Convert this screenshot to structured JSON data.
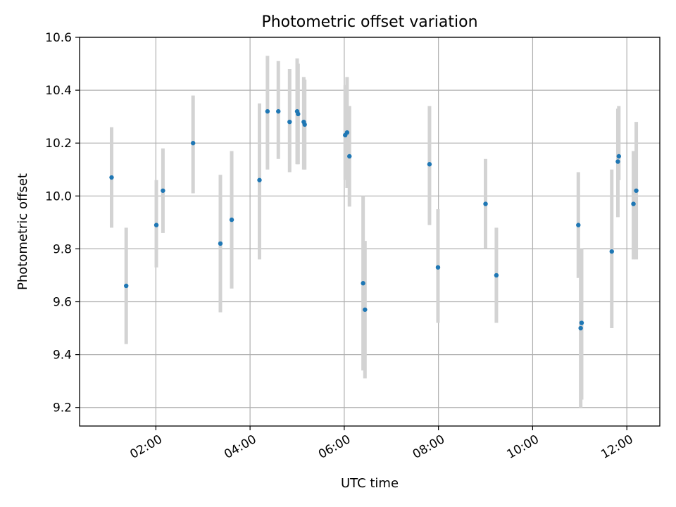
{
  "chart_data": {
    "type": "scatter",
    "title": "Photometric offset variation",
    "xlabel": "UTC time",
    "ylabel": "Photometric offset",
    "x_unit": "hours UTC",
    "xlim": [
      0.38,
      12.7
    ],
    "ylim": [
      9.13,
      10.6
    ],
    "grid": true,
    "x_ticks": [
      {
        "value": 2,
        "label": "02:00"
      },
      {
        "value": 4,
        "label": "04:00"
      },
      {
        "value": 6,
        "label": "06:00"
      },
      {
        "value": 8,
        "label": "08:00"
      },
      {
        "value": 10,
        "label": "10:00"
      },
      {
        "value": 12,
        "label": "12:00"
      }
    ],
    "y_ticks": [
      {
        "value": 9.2,
        "label": "9.2"
      },
      {
        "value": 9.4,
        "label": "9.4"
      },
      {
        "value": 9.6,
        "label": "9.6"
      },
      {
        "value": 9.8,
        "label": "9.8"
      },
      {
        "value": 10.0,
        "label": "10.0"
      },
      {
        "value": 10.2,
        "label": "10.2"
      },
      {
        "value": 10.4,
        "label": "10.4"
      },
      {
        "value": 10.6,
        "label": "10.6"
      }
    ],
    "colors": {
      "point": "#1f77b4",
      "errorbar": "#d3d3d3"
    },
    "points": [
      {
        "x": 1.06,
        "y": 10.07,
        "lo": 9.88,
        "hi": 10.26
      },
      {
        "x": 1.37,
        "y": 9.66,
        "lo": 9.44,
        "hi": 9.88
      },
      {
        "x": 2.01,
        "y": 9.89,
        "lo": 9.73,
        "hi": 10.06
      },
      {
        "x": 2.15,
        "y": 10.02,
        "lo": 9.86,
        "hi": 10.18
      },
      {
        "x": 2.79,
        "y": 10.2,
        "lo": 10.01,
        "hi": 10.38
      },
      {
        "x": 3.37,
        "y": 9.82,
        "lo": 9.56,
        "hi": 10.08
      },
      {
        "x": 3.61,
        "y": 9.91,
        "lo": 9.65,
        "hi": 10.17
      },
      {
        "x": 4.2,
        "y": 10.06,
        "lo": 9.76,
        "hi": 10.35
      },
      {
        "x": 4.37,
        "y": 10.32,
        "lo": 10.1,
        "hi": 10.53
      },
      {
        "x": 4.6,
        "y": 10.32,
        "lo": 10.14,
        "hi": 10.51
      },
      {
        "x": 4.84,
        "y": 10.28,
        "lo": 10.09,
        "hi": 10.48
      },
      {
        "x": 5.0,
        "y": 10.32,
        "lo": 10.12,
        "hi": 10.52
      },
      {
        "x": 5.02,
        "y": 10.31,
        "lo": 10.12,
        "hi": 10.5
      },
      {
        "x": 5.14,
        "y": 10.28,
        "lo": 10.1,
        "hi": 10.45
      },
      {
        "x": 5.16,
        "y": 10.27,
        "lo": 10.1,
        "hi": 10.44
      },
      {
        "x": 6.02,
        "y": 10.23,
        "lo": 10.06,
        "hi": 10.42
      },
      {
        "x": 6.06,
        "y": 10.24,
        "lo": 10.03,
        "hi": 10.45
      },
      {
        "x": 6.11,
        "y": 10.15,
        "lo": 9.96,
        "hi": 10.34
      },
      {
        "x": 6.4,
        "y": 9.67,
        "lo": 9.34,
        "hi": 10.0
      },
      {
        "x": 6.44,
        "y": 9.57,
        "lo": 9.31,
        "hi": 9.83
      },
      {
        "x": 7.81,
        "y": 10.12,
        "lo": 9.89,
        "hi": 10.34
      },
      {
        "x": 7.99,
        "y": 9.73,
        "lo": 9.52,
        "hi": 9.95
      },
      {
        "x": 9.0,
        "y": 9.97,
        "lo": 9.8,
        "hi": 10.14
      },
      {
        "x": 9.23,
        "y": 9.7,
        "lo": 9.52,
        "hi": 9.88
      },
      {
        "x": 10.97,
        "y": 9.89,
        "lo": 9.69,
        "hi": 10.09
      },
      {
        "x": 11.02,
        "y": 9.5,
        "lo": 9.2,
        "hi": 9.8
      },
      {
        "x": 11.04,
        "y": 9.52,
        "lo": 9.23,
        "hi": 9.8
      },
      {
        "x": 11.68,
        "y": 9.79,
        "lo": 9.5,
        "hi": 10.1
      },
      {
        "x": 11.81,
        "y": 10.13,
        "lo": 9.92,
        "hi": 10.33
      },
      {
        "x": 11.83,
        "y": 10.15,
        "lo": 10.06,
        "hi": 10.34
      },
      {
        "x": 12.14,
        "y": 9.97,
        "lo": 9.76,
        "hi": 10.17
      },
      {
        "x": 12.2,
        "y": 10.02,
        "lo": 9.76,
        "hi": 10.28
      }
    ]
  }
}
